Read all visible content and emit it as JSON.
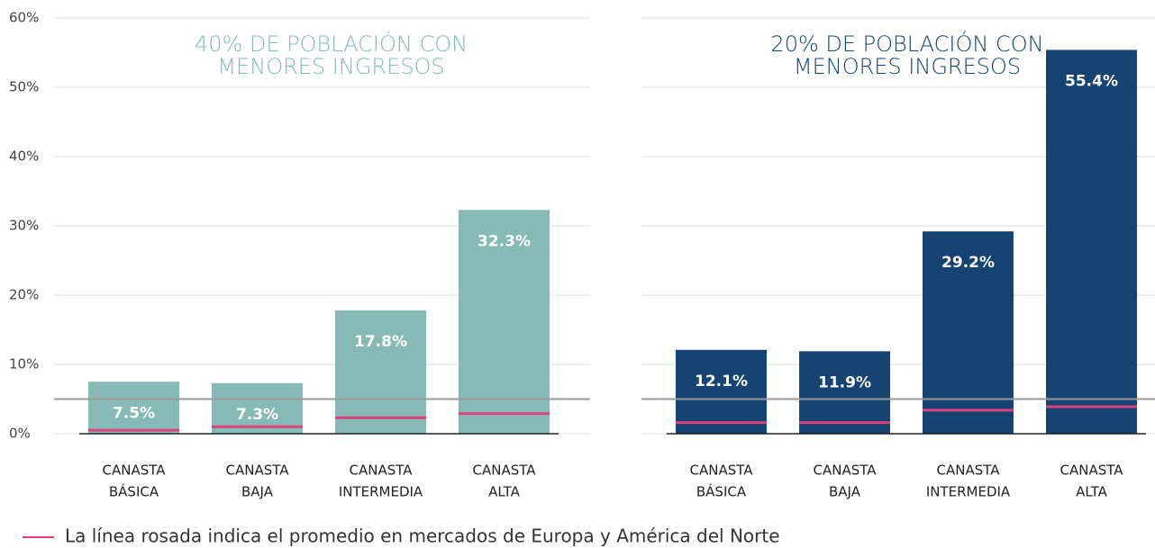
{
  "chart_data": [
    {
      "type": "bar",
      "title": [
        "40% DE POBLACIÓN CON",
        "MENORES INGRESOS"
      ],
      "categories": [
        [
          "CANASTA",
          "BÁSICA"
        ],
        [
          "CANASTA",
          "BAJA"
        ],
        [
          "CANASTA",
          "INTERMEDIA"
        ],
        [
          "CANASTA",
          "ALTA"
        ]
      ],
      "values": [
        7.5,
        7.3,
        17.8,
        32.3
      ],
      "value_labels": [
        "7.5%",
        "7.3%",
        "17.8%",
        "32.3%"
      ],
      "color": "#85bab6",
      "averages": [
        0.5,
        1.0,
        2.3,
        2.9
      ],
      "average_color": "#e0417e",
      "reference_line": 5,
      "ylim": [
        0,
        60
      ],
      "yticks": [
        {
          "value": 0,
          "label": "0%"
        },
        {
          "value": 10,
          "label": "10%"
        },
        {
          "value": 20,
          "label": "20%"
        },
        {
          "value": 30,
          "label": "30%"
        },
        {
          "value": 40,
          "label": "40%"
        },
        {
          "value": 50,
          "label": "50%"
        },
        {
          "value": 60,
          "label": "60%"
        }
      ],
      "grid": true
    },
    {
      "type": "bar",
      "title": [
        "20% DE POBLACIÓN CON",
        "MENORES INGRESOS"
      ],
      "categories": [
        [
          "CANASTA",
          "BÁSICA"
        ],
        [
          "CANASTA",
          "BAJA"
        ],
        [
          "CANASTA",
          "INTERMEDIA"
        ],
        [
          "CANASTA",
          "ALTA"
        ]
      ],
      "values": [
        12.1,
        11.9,
        29.2,
        55.4
      ],
      "value_labels": [
        "12.1%",
        "11.9%",
        "29.2%",
        "55.4%"
      ],
      "color": "#154372",
      "averages": [
        1.6,
        1.6,
        3.4,
        3.9
      ],
      "average_color": "#e0417e",
      "reference_line": 5,
      "ylim": [
        0,
        60
      ],
      "yticks": [
        0,
        10,
        20,
        30,
        40,
        50,
        60
      ],
      "grid": true
    }
  ],
  "legend": {
    "text": "La línea rosada indica el promedio en mercados de Europa y América del Norte",
    "color": "#e0417e"
  }
}
